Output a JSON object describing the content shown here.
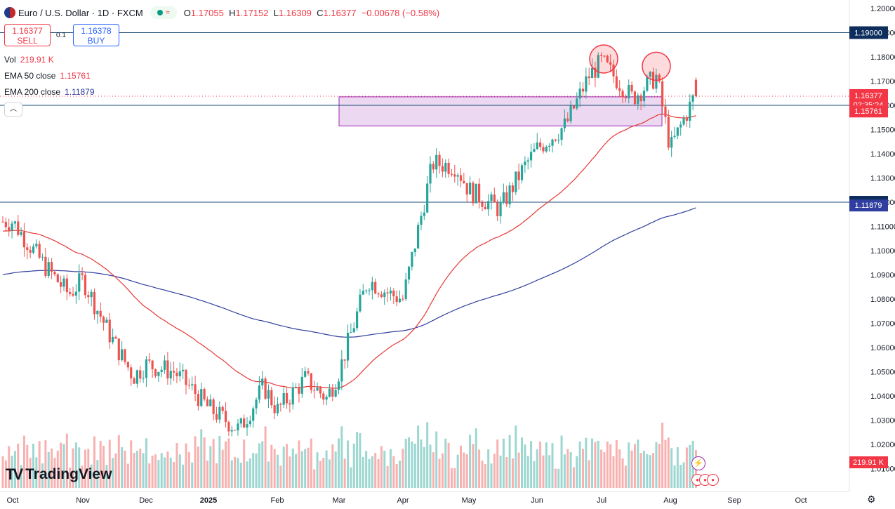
{
  "header": {
    "symbol": "Euro / U.S. Dollar · 1D · FXCM",
    "open_label": "O",
    "open": "1.17055",
    "high_label": "H",
    "high": "1.17152",
    "low_label": "L",
    "low": "1.16309",
    "close_label": "C",
    "close": "1.16377",
    "change": "−0.00678 (−0.58%)"
  },
  "trade": {
    "sell_price": "1.16377",
    "sell_label": "SELL",
    "spread": "0.1",
    "buy_price": "1.16378",
    "buy_label": "BUY"
  },
  "indicators": {
    "vol_label": "Vol",
    "vol_value": "219.91 K",
    "ema50_label": "EMA 50 close",
    "ema50_value": "1.15761",
    "ema200_label": "EMA 200 close",
    "ema200_value": "1.11879"
  },
  "branding": {
    "logo_text": "TradingView"
  },
  "colors": {
    "up": "#26a69a",
    "down": "#ef5350",
    "ema50": "#e53935",
    "ema200": "#303f9f",
    "zone": "#9c27b0",
    "hline": "#1e4d78"
  },
  "chart_data": {
    "type": "candlestick",
    "title": "Euro / U.S. Dollar · 1D · FXCM",
    "x_labels": [
      "Oct",
      "Nov",
      "Dec",
      "2025",
      "Feb",
      "Mar",
      "Apr",
      "May",
      "Jun",
      "Jul",
      "Aug",
      "Sep",
      "Oct"
    ],
    "y_ticks": [
      "1.20000",
      "1.19000",
      "1.18000",
      "1.17000",
      "1.16000",
      "1.15000",
      "1.14000",
      "1.13000",
      "1.12000",
      "1.11000",
      "1.10000",
      "1.09000",
      "1.08000",
      "1.07000",
      "1.06000",
      "1.05000",
      "1.04000",
      "1.03000",
      "1.02000",
      "1.01000"
    ],
    "ylim": [
      1.0085,
      1.2005
    ],
    "horizontal_lines": [
      {
        "value": 1.19,
        "label": "1.19000"
      },
      {
        "value": 1.16,
        "label": "1.16000"
      },
      {
        "value": 1.12,
        "label": "1.12000"
      }
    ],
    "price_tags": [
      {
        "label": "1.16377",
        "sub": "02:35:24",
        "value": 1.16377,
        "color": "#f23645"
      },
      {
        "label": "1.15761",
        "value": 1.15761,
        "color": "#f23645"
      },
      {
        "label": "1.11879",
        "value": 1.11879,
        "color": "#303f9f"
      },
      {
        "label": "219.91 K",
        "volume_tag": true,
        "color": "#f23645"
      }
    ],
    "resistance_zone": {
      "from_month": "Mar",
      "to_month": "Jul",
      "low": 1.1515,
      "high": 1.1635
    },
    "highlight_circles": [
      {
        "month": "Jun-end",
        "value": 1.18
      },
      {
        "month": "Jul-end",
        "value": 1.177
      }
    ],
    "close_path": [
      [
        "Oct",
        1.112
      ],
      [
        "Oct-mid",
        1.094
      ],
      [
        "Oct-late",
        1.082
      ],
      [
        "Nov",
        1.088
      ],
      [
        "Nov-mid",
        1.064
      ],
      [
        "Nov-late",
        1.048
      ],
      [
        "Dec",
        1.053
      ],
      [
        "Dec-mid",
        1.05
      ],
      [
        "Dec-late",
        1.041
      ],
      [
        "2025",
        1.035
      ],
      [
        "Jan-mid",
        1.026
      ],
      [
        "Jan-late",
        1.044
      ],
      [
        "Feb",
        1.034
      ],
      [
        "Feb-mid",
        1.047
      ],
      [
        "Feb-late",
        1.039
      ],
      [
        "Mar",
        1.05
      ],
      [
        "Mar-mid",
        1.088
      ],
      [
        "Mar-late",
        1.082
      ],
      [
        "Apr",
        1.08
      ],
      [
        "Apr-mid",
        1.136
      ],
      [
        "Apr-late",
        1.135
      ],
      [
        "May",
        1.125
      ],
      [
        "May-mid",
        1.117
      ],
      [
        "May-late",
        1.134
      ],
      [
        "Jun",
        1.142
      ],
      [
        "Jun-mid",
        1.152
      ],
      [
        "Jun-late",
        1.172
      ],
      [
        "Jul",
        1.178
      ],
      [
        "Jul-mid",
        1.163
      ],
      [
        "Jul-late",
        1.172
      ],
      [
        "Aug",
        1.142
      ],
      [
        "Aug-mid",
        1.168
      ],
      [
        "Aug-late",
        1.16377
      ]
    ],
    "ema50_value": 1.15761,
    "ema200_value": 1.11879,
    "volume": {
      "last": "219.91 K"
    }
  }
}
